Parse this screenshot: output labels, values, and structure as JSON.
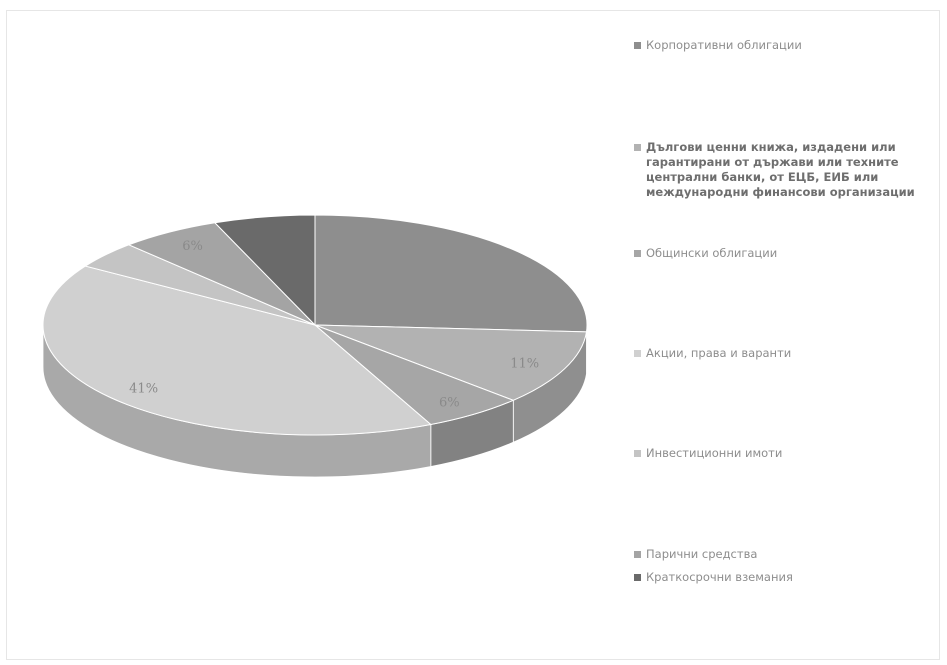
{
  "chart_data": {
    "type": "pie",
    "three_d": true,
    "title": "",
    "slices": [
      {
        "label": "Корпоративни облигации",
        "value": 26,
        "data_label": "",
        "color": "#8e8e8e",
        "side_color": "#6c6c6c"
      },
      {
        "label": "Дългови ценни книжа, издадени или гарантирани от държави или техните централни банки, от ЕЦБ, ЕИБ или международни финансови организации",
        "value": 11,
        "data_label": "11%",
        "color": "#b2b2b2",
        "side_color": "#8f8f8f"
      },
      {
        "label": "Общински облигации",
        "value": 6,
        "data_label": "6%",
        "color": "#a6a6a6",
        "side_color": "#828282"
      },
      {
        "label": "Акции, права и варанти",
        "value": 41,
        "data_label": "41%",
        "color": "#d0d0d0",
        "side_color": "#a9a9a9"
      },
      {
        "label": "Инвестиционни имоти",
        "value": 4,
        "data_label": "",
        "color": "#c4c4c4",
        "side_color": "#9e9e9e"
      },
      {
        "label": "Парични средства",
        "value": 6,
        "data_label": "6%",
        "color": "#a4a4a4",
        "side_color": "#828282"
      },
      {
        "label": "Краткосрочни вземания",
        "value": 6,
        "data_label": "",
        "color": "#6a6a6a",
        "side_color": "#4e4e4e"
      }
    ]
  }
}
